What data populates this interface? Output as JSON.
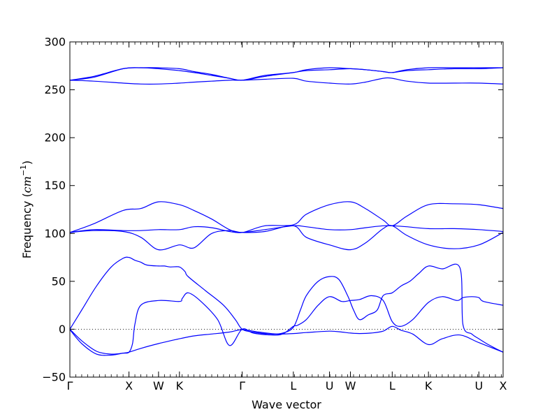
{
  "chart_data": {
    "type": "line",
    "title": "",
    "xlabel": "Wave vector",
    "ylabel": "Frequency ($cm^{-1}$)",
    "ylabel_display": {
      "prefix": "Frequency (",
      "unit": "cm",
      "exponent": "−1",
      "suffix": ")"
    },
    "ylim": [
      -50,
      300
    ],
    "yticks": [
      -50,
      0,
      50,
      100,
      150,
      200,
      250,
      300
    ],
    "ytick_labels": [
      "−50",
      "0",
      "50",
      "100",
      "150",
      "200",
      "250",
      "300"
    ],
    "xlim": [
      0,
      7.33
    ],
    "high_symmetry_points": [
      {
        "label": "Γ",
        "x": 0
      },
      {
        "label": "X",
        "x": 1.0
      },
      {
        "label": "W",
        "x": 1.5
      },
      {
        "label": "K",
        "x": 1.854
      },
      {
        "label": "Γ",
        "x": 2.915
      },
      {
        "label": "L",
        "x": 3.781
      },
      {
        "label": "U",
        "x": 4.393
      },
      {
        "label": "W",
        "x": 4.747
      },
      {
        "label": "L",
        "x": 5.454
      },
      {
        "label": "K",
        "x": 6.067
      },
      {
        "label": "U",
        "x": 6.92
      },
      {
        "label": "X",
        "x": 7.33
      }
    ],
    "zero_line": {
      "y": 0,
      "style": "dotted"
    },
    "grid": false,
    "legend": "none",
    "series_color": "#0000ff",
    "series": [
      {
        "x": [
          0,
          0.2,
          0.45,
          0.7,
          0.9,
          1.0,
          1.2,
          1.5,
          1.854,
          2.1,
          2.4,
          2.7,
          2.915,
          3.2,
          3.5,
          3.781,
          4.0,
          4.393,
          4.6,
          4.747,
          4.9,
          5.1,
          5.3,
          5.454,
          5.6,
          5.8,
          6.067,
          6.3,
          6.6,
          6.92,
          7.33
        ],
        "y": [
          -0.5,
          -15,
          -26,
          -27,
          -25,
          -24,
          -20,
          -15,
          -10,
          -7,
          -5,
          -3,
          -0.5,
          -3,
          -5,
          -4.5,
          -3.5,
          -2,
          -3,
          -4,
          -4.5,
          -4,
          -2,
          3,
          -1,
          -5,
          -16,
          -10,
          -6,
          -14,
          -24
        ]
      },
      {
        "x": [
          0,
          0.2,
          0.45,
          0.7,
          0.9,
          1.0,
          1.06,
          1.1,
          1.2,
          1.5,
          1.854,
          1.9,
          2.0,
          2.2,
          2.5,
          2.7,
          2.915,
          3.1,
          3.4,
          3.6,
          3.781,
          3.85,
          4.0,
          4.2,
          4.393,
          4.6,
          4.747,
          4.9,
          5.1,
          5.3,
          5.454,
          5.6,
          5.8,
          6.067,
          6.3,
          6.55,
          6.65,
          6.8,
          6.92,
          7.0,
          7.33
        ],
        "y": [
          0,
          -12,
          -23,
          -26,
          -25,
          -24,
          -15,
          5,
          25,
          30,
          29,
          32,
          38,
          30,
          10,
          -17,
          0,
          -4,
          -6,
          -5,
          3,
          4,
          10,
          25,
          34,
          29,
          30,
          31,
          35,
          30,
          8,
          3,
          10,
          28,
          34,
          30,
          33,
          34,
          33,
          29,
          25
        ]
      },
      {
        "x": [
          0,
          0.2,
          0.45,
          0.7,
          0.9,
          1.0,
          1.1,
          1.2,
          1.3,
          1.5,
          1.6,
          1.7,
          1.854,
          1.95,
          2.0,
          2.3,
          2.6,
          2.8,
          2.915,
          3.1,
          3.4,
          3.6,
          3.781,
          3.9,
          4.0,
          4.2,
          4.393,
          4.55,
          4.7,
          4.8,
          4.9,
          5.05,
          5.2,
          5.3,
          5.454,
          5.6,
          5.75,
          5.9,
          6.067,
          6.3,
          6.6,
          6.65,
          6.8,
          6.92,
          7.05,
          7.2,
          7.33
        ],
        "y": [
          0,
          20,
          45,
          65,
          74,
          75,
          72,
          70,
          67,
          66,
          66,
          65,
          65,
          60,
          55,
          40,
          25,
          10,
          0,
          -3,
          -5,
          -4,
          2,
          20,
          35,
          50,
          55,
          52,
          35,
          20,
          10,
          15,
          20,
          35,
          38,
          45,
          50,
          58,
          66,
          63,
          64,
          5,
          -5,
          -10,
          -15,
          -20,
          -24
        ]
      },
      {
        "x": [
          0,
          0.4,
          0.9,
          1.2,
          1.5,
          1.854,
          2.1,
          2.4,
          2.7,
          2.915,
          3.3,
          3.781,
          4.0,
          4.393,
          4.747,
          5.0,
          5.3,
          5.454,
          5.7,
          6.067,
          6.5,
          6.92,
          7.33
        ],
        "y": [
          101,
          103,
          102,
          96,
          83,
          88,
          85,
          100,
          103,
          101,
          102,
          108,
          96,
          88,
          83,
          90,
          105,
          108,
          98,
          88,
          84,
          88,
          101
        ]
      },
      {
        "x": [
          0,
          0.4,
          0.9,
          1.2,
          1.5,
          1.854,
          2.1,
          2.4,
          2.7,
          2.915,
          3.3,
          3.781,
          4.0,
          4.393,
          4.747,
          5.0,
          5.3,
          5.454,
          5.7,
          6.067,
          6.5,
          6.92,
          7.33
        ],
        "y": [
          101,
          104,
          103,
          103,
          104,
          104,
          107,
          106,
          102,
          101,
          104,
          108,
          107,
          104,
          104,
          106,
          108,
          108,
          107,
          105,
          105,
          104,
          102
        ]
      },
      {
        "x": [
          0,
          0.4,
          0.9,
          1.2,
          1.5,
          1.854,
          2.1,
          2.4,
          2.7,
          2.915,
          3.3,
          3.781,
          4.0,
          4.393,
          4.747,
          5.0,
          5.3,
          5.454,
          5.7,
          6.067,
          6.5,
          6.92,
          7.33
        ],
        "y": [
          101,
          110,
          124,
          126,
          133,
          130,
          124,
          115,
          104,
          101,
          108,
          109,
          120,
          130,
          133,
          126,
          114,
          108,
          118,
          130,
          131,
          130,
          126
        ]
      },
      {
        "x": [
          0,
          0.4,
          0.9,
          1.2,
          1.5,
          1.854,
          2.1,
          2.4,
          2.7,
          2.915,
          3.3,
          3.781,
          4.0,
          4.393,
          4.747,
          5.0,
          5.3,
          5.454,
          5.7,
          6.067,
          6.5,
          6.92,
          7.33
        ],
        "y": [
          260,
          259,
          257,
          256,
          256,
          257,
          258,
          259,
          260,
          260,
          261,
          262,
          259,
          257,
          256,
          258,
          262,
          262,
          259,
          257,
          257,
          257,
          256
        ]
      },
      {
        "x": [
          0,
          0.4,
          0.9,
          1.2,
          1.5,
          1.854,
          2.1,
          2.4,
          2.7,
          2.915,
          3.3,
          3.781,
          4.0,
          4.393,
          4.747,
          5.0,
          5.3,
          5.454,
          5.7,
          6.067,
          6.5,
          6.92,
          7.33
        ],
        "y": [
          260,
          263,
          272,
          273,
          272,
          270,
          268,
          265,
          262,
          260,
          264,
          268,
          270,
          271,
          272,
          271,
          269,
          268,
          270,
          271,
          272,
          272,
          273
        ]
      },
      {
        "x": [
          0,
          0.4,
          0.9,
          1.2,
          1.5,
          1.854,
          2.1,
          2.4,
          2.7,
          2.915,
          3.3,
          3.781,
          4.0,
          4.393,
          4.747,
          5.0,
          5.3,
          5.454,
          5.7,
          6.067,
          6.5,
          6.92,
          7.33
        ],
        "y": [
          260,
          264,
          272,
          273,
          273,
          272,
          269,
          266,
          262,
          260,
          265,
          268,
          271,
          273,
          272,
          271,
          269,
          268,
          271,
          273,
          273,
          273,
          273
        ]
      }
    ]
  }
}
